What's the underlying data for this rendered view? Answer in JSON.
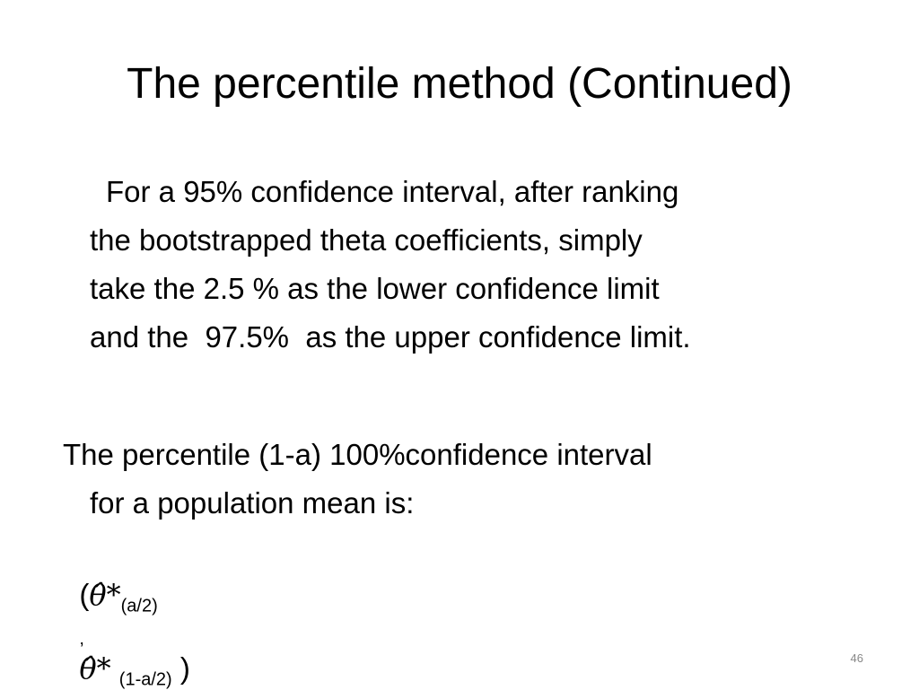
{
  "header": {
    "title": "The percentile method (Continued)"
  },
  "body": {
    "paragraph1": {
      "lines": [
        "For a 95% confidence interval, after ranking",
        "the bootstrapped theta coefficients, simply",
        "take the 2.5 % as the lower confidence limit",
        "and the  97.5%  as the upper confidence limit."
      ]
    },
    "paragraph2": {
      "lines": [
        "The percentile (1-a) 100%confidence interval",
        "for a population mean is:"
      ]
    },
    "formula": {
      "open": "(",
      "symbol": "θ̂*",
      "lower_subscript": "(a/2)",
      "separator": ",",
      "upper_subscript": "(1-a/2)",
      "close": ")"
    }
  },
  "footer": {
    "page_number": "46"
  }
}
